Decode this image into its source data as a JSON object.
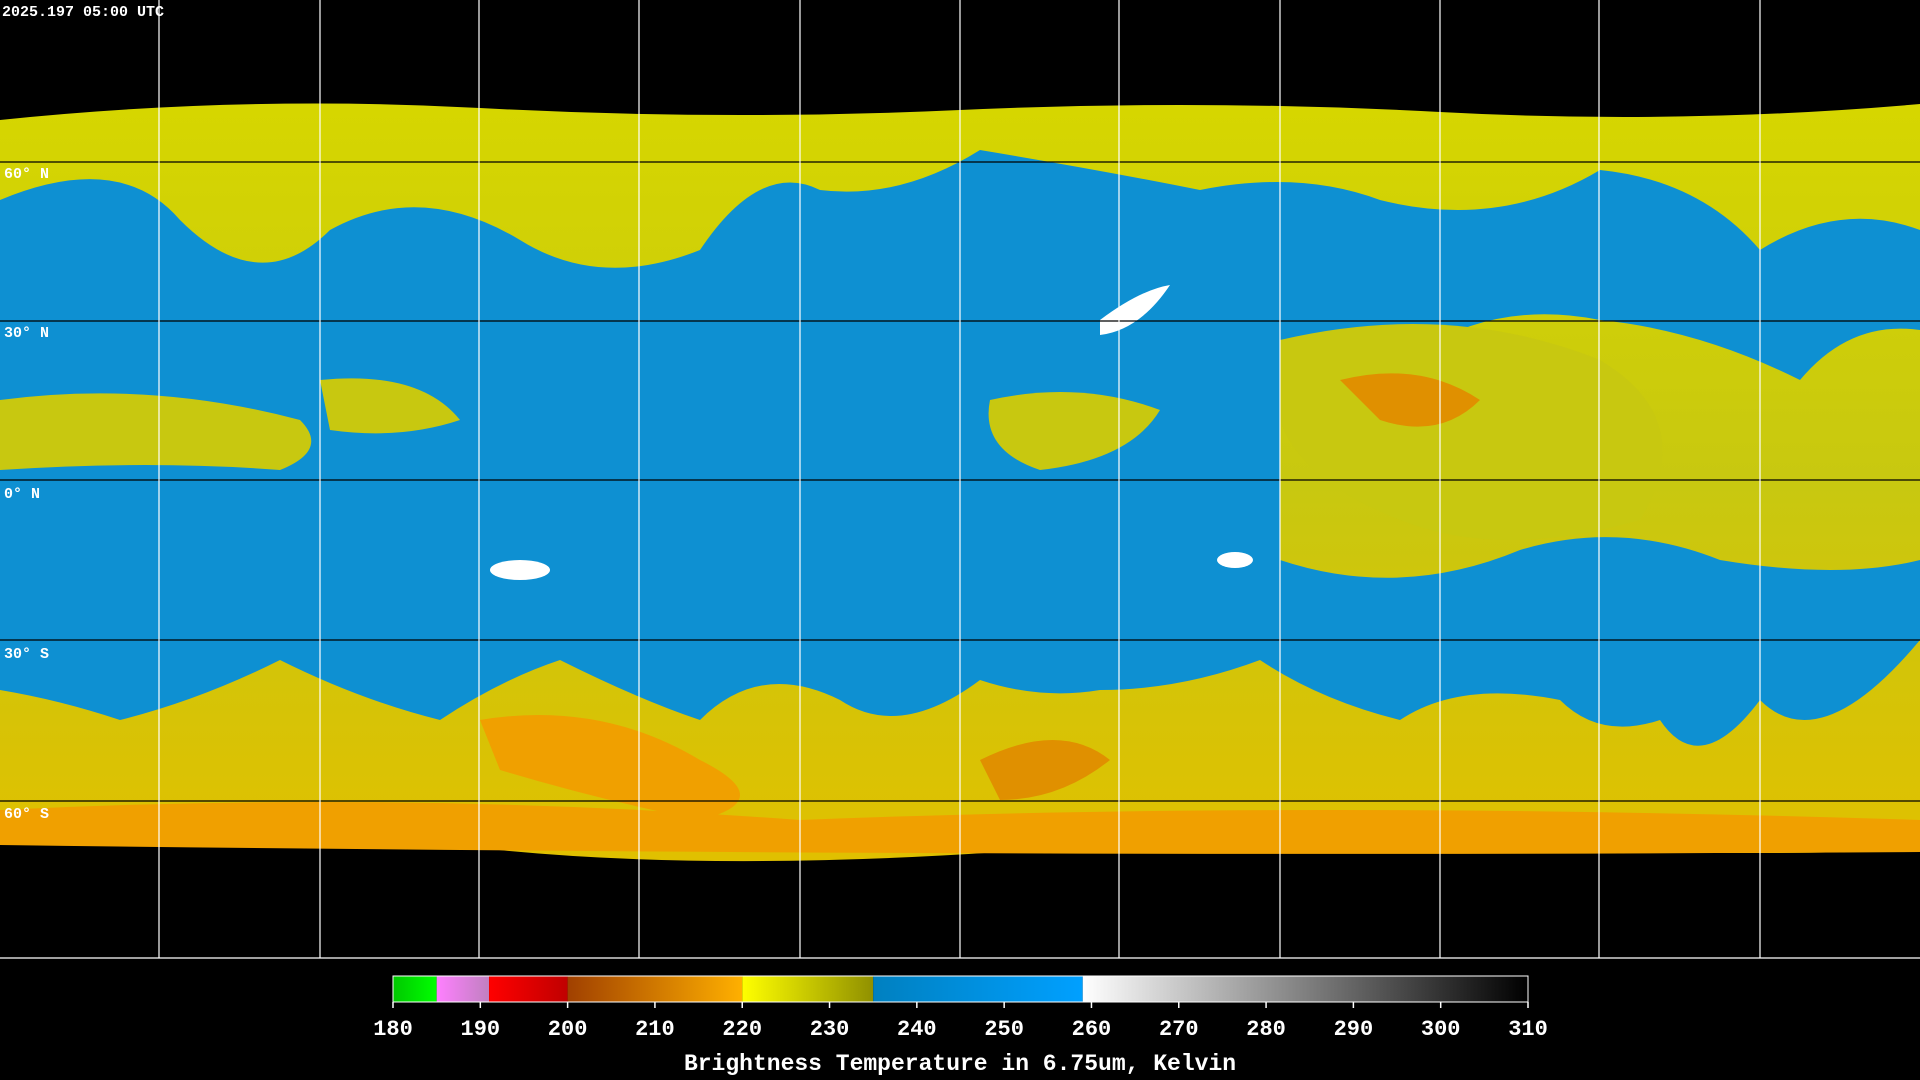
{
  "timestamp": "2025.197 05:00 UTC",
  "lat_labels": [
    "60° N",
    "30° N",
    "0° N",
    "30° S",
    "60° S"
  ],
  "colorbar": {
    "title": "Brightness Temperature in 6.75um, Kelvin",
    "range": [
      180,
      310
    ],
    "ticks": [
      180,
      190,
      200,
      210,
      220,
      230,
      240,
      250,
      260,
      270,
      280,
      290,
      300,
      310
    ],
    "segments": [
      {
        "from": 180,
        "to": 185,
        "colors": [
          "#00c800",
          "#00ff00"
        ]
      },
      {
        "from": 185,
        "to": 191,
        "colors": [
          "#ff80ff",
          "#c080c0"
        ]
      },
      {
        "from": 191,
        "to": 200,
        "colors": [
          "#ff0000",
          "#c00000"
        ]
      },
      {
        "from": 200,
        "to": 220,
        "colors": [
          "#a04000",
          "#ffb000"
        ]
      },
      {
        "from": 220,
        "to": 235,
        "colors": [
          "#ffff00",
          "#909000"
        ]
      },
      {
        "from": 235,
        "to": 259,
        "colors": [
          "#0080c0",
          "#00a0ff"
        ]
      },
      {
        "from": 259,
        "to": 310,
        "colors": [
          "#ffffff",
          "#000000"
        ]
      }
    ]
  }
}
